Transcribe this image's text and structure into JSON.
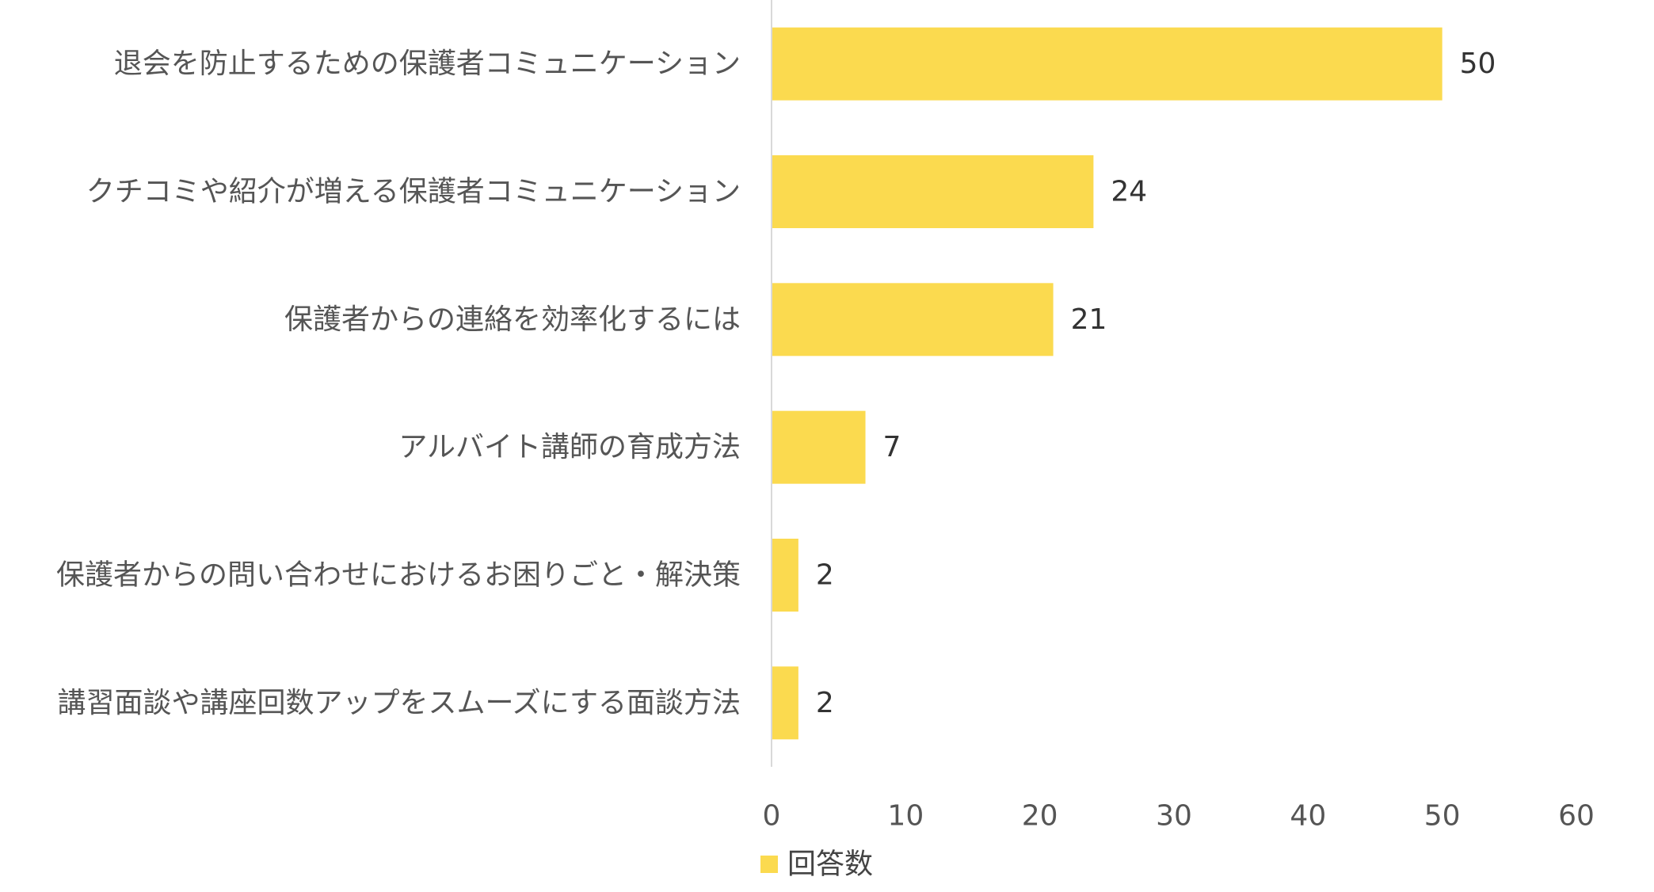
{
  "chart_data": {
    "type": "bar",
    "orientation": "horizontal",
    "categories": [
      "退会を防止するための保護者コミュニケーション",
      "クチコミや紹介が増える保護者コミュニケーション",
      "保護者からの連絡を効率化するには",
      "アルバイト講師の育成方法",
      "保護者からの問い合わせにおけるお困りごと・解決策",
      "講習面談や講座回数アップをスムーズにする面談方法"
    ],
    "series": [
      {
        "name": "回答数",
        "values": [
          50,
          24,
          21,
          7,
          2,
          2
        ],
        "color": "#FBDA4F"
      }
    ],
    "xlim": [
      0,
      60
    ],
    "xticks": [
      "0",
      "10",
      "20",
      "30",
      "40",
      "50",
      "60"
    ],
    "grid": false,
    "legend": "bottom",
    "data_labels": true
  }
}
